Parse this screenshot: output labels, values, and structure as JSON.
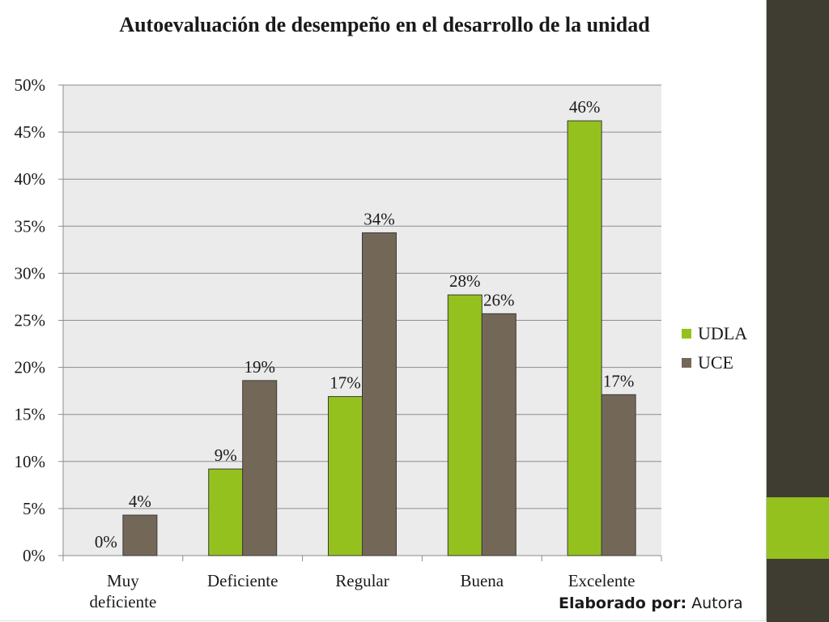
{
  "chart_data": {
    "type": "bar",
    "title": "Autoevaluación de desempeño en el desarrollo de la unidad",
    "categories": [
      "Muy deficiente",
      "Deficiente",
      "Regular",
      "Buena",
      "Excelente"
    ],
    "categories_display": [
      [
        "Muy",
        "deficiente"
      ],
      [
        "Deficiente"
      ],
      [
        "Regular"
      ],
      [
        "Buena"
      ],
      [
        "Excelente"
      ]
    ],
    "series": [
      {
        "name": "UDLA",
        "color": "#95c11f",
        "values": [
          0,
          9.2,
          16.9,
          27.7,
          46.2
        ],
        "labels": [
          "0%",
          "9%",
          "17%",
          "28%",
          "46%"
        ]
      },
      {
        "name": "UCE",
        "color": "#736857",
        "values": [
          4.3,
          18.6,
          34.3,
          25.7,
          17.1
        ],
        "labels": [
          "4%",
          "19%",
          "34%",
          "26%",
          "17%"
        ]
      }
    ],
    "ylim": [
      0,
      50
    ],
    "yticks": [
      "0%",
      "5%",
      "10%",
      "15%",
      "20%",
      "25%",
      "30%",
      "35%",
      "40%",
      "45%",
      "50%"
    ],
    "grid": true,
    "legend_position": "right"
  },
  "credit": {
    "label": "Elaborado por:",
    "name": "Autora"
  },
  "colors": {
    "side_panel": "#3f3d31",
    "side_accent": "#95c11f",
    "plot_background": "#ebebeb"
  }
}
